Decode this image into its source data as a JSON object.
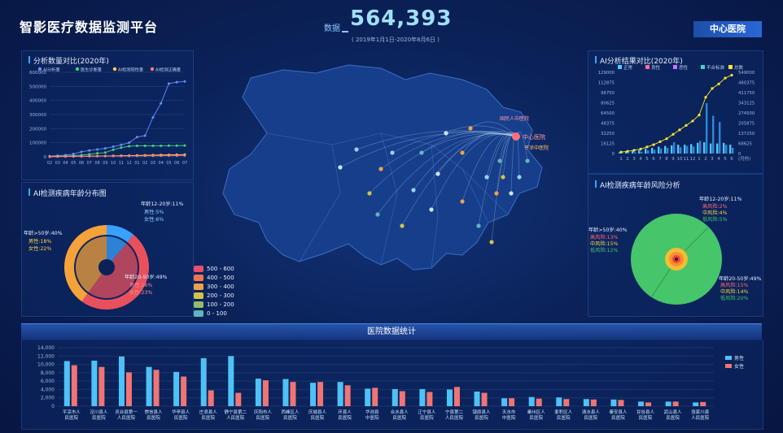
{
  "header": {
    "title": "智影医疗数据监测平台",
    "total_label": "数据",
    "total_value": "564,393",
    "date_range": "( 2019年1月1日-2020年8月6日 )",
    "hospital_button": "中心医院"
  },
  "map": {
    "center_label": "中心医院",
    "labels": [
      "国民人中医院",
      "平凉中医院"
    ],
    "heat_legend": [
      {
        "label": "500 - 600",
        "color": "#e8506a"
      },
      {
        "label": "400 - 500",
        "color": "#ee7650"
      },
      {
        "label": "300 - 400",
        "color": "#f0a04a"
      },
      {
        "label": "200 - 300",
        "color": "#d6c04c"
      },
      {
        "label": "100 - 200",
        "color": "#8fbf6a"
      },
      {
        "label": "0 - 100",
        "color": "#5fb6b8"
      }
    ]
  },
  "left_top": {
    "title": "分析数量对比(2020年)",
    "legend": [
      "AI分析量",
      "医生诊断量",
      "AI检测阳性量",
      "AI检测正确量"
    ]
  },
  "left_bottom": {
    "title": "AI检测疾病年龄分布图",
    "labels": [
      {
        "text": "年龄12-20岁:11%"
      },
      {
        "text": "男性:5%"
      },
      {
        "text": "女性:6%"
      },
      {
        "text": "年龄>50岁:40%"
      },
      {
        "text": "男性:18%"
      },
      {
        "text": "女性:22%"
      },
      {
        "text": "年龄20-50岁:49%"
      },
      {
        "text": "男性:26%"
      },
      {
        "text": "女性:23%"
      }
    ]
  },
  "right_top": {
    "title": "AI分析结果对比(2020年)",
    "legend": [
      "正常",
      "良性",
      "恶性",
      "不合标准",
      "总数"
    ]
  },
  "right_bottom": {
    "title": "AI检测疾病年龄风险分析",
    "labels": [
      {
        "text": "年龄12-20岁:11%"
      },
      {
        "text": "高风险:2%"
      },
      {
        "text": "中风险:4%"
      },
      {
        "text": "低风险:5%"
      },
      {
        "text": "年龄>50岁:40%"
      },
      {
        "text": "高风险:13%"
      },
      {
        "text": "中风险:15%"
      },
      {
        "text": "低风险:12%"
      },
      {
        "text": "年龄20-50岁:49%"
      },
      {
        "text": "高风险:15%"
      },
      {
        "text": "中风险:14%"
      },
      {
        "text": "低风险:20%"
      }
    ]
  },
  "bottom": {
    "title": "医院数据统计",
    "legend": [
      "男性",
      "女性"
    ]
  },
  "chart_data": [
    {
      "type": "line",
      "title": "分析数量对比(2020年)",
      "x": [
        "02",
        "03",
        "04",
        "05",
        "06",
        "07",
        "08",
        "09",
        "10",
        "11",
        "12",
        "01",
        "02",
        "03",
        "04",
        "05",
        "06",
        "07"
      ],
      "ylim": [
        0,
        600000
      ],
      "yticks": [
        "600000",
        "500000",
        "400000",
        "300000",
        "200000",
        "100000",
        "0"
      ],
      "xticks": [
        "02",
        "03",
        "04",
        "05",
        "06",
        "07",
        "08",
        "09",
        "10",
        "11",
        "12",
        "01",
        "02",
        "03",
        "04",
        "05",
        "06",
        "07"
      ],
      "series": [
        {
          "name": "AI分析量",
          "color": "#6a8cff",
          "values": [
            5000,
            8000,
            12000,
            20000,
            35000,
            45000,
            52000,
            60000,
            72000,
            85000,
            100000,
            140000,
            150000,
            280000,
            380000,
            520000,
            530000,
            535000
          ]
        },
        {
          "name": "医生诊断量",
          "color": "#3fd47a",
          "values": [
            2000,
            3000,
            5000,
            8000,
            12000,
            18000,
            25000,
            30000,
            50000,
            65000,
            75000,
            78000,
            78000,
            78000,
            78000,
            79000,
            79000,
            80000
          ]
        },
        {
          "name": "AI检测阳性量",
          "color": "#ffd24a",
          "values": [
            1000,
            2000,
            2500,
            3000,
            4000,
            5000,
            5500,
            6000,
            7000,
            8000,
            9000,
            10000,
            11000,
            12000,
            13000,
            14000,
            15000,
            16000
          ]
        },
        {
          "name": "AI检测正确量",
          "color": "#ff7a7a",
          "values": [
            800,
            1500,
            2000,
            2500,
            3000,
            3500,
            4000,
            4500,
            5000,
            5500,
            6000,
            6500,
            7000,
            7500,
            8000,
            8500,
            9000,
            9500
          ]
        }
      ]
    },
    {
      "type": "pie",
      "title": "AI检测疾病年龄分布图",
      "categories": [
        "年龄12-20岁",
        "年龄20-50岁",
        "年龄>50岁"
      ],
      "values": [
        11,
        49,
        40
      ],
      "colors": [
        "#3aa0ff",
        "#e8505e",
        "#f6a23a"
      ]
    },
    {
      "type": "bar",
      "title": "AI分析结果对比(2020年)",
      "categories": [
        "1",
        "2",
        "3",
        "4",
        "5",
        "6",
        "7",
        "8",
        "9",
        "10",
        "11",
        "12",
        "1",
        "2",
        "3",
        "4",
        "5",
        "6"
      ],
      "xticks": [
        "1",
        "2",
        "3",
        "4",
        "5",
        "6",
        "7",
        "8",
        "9",
        "10",
        "11",
        "12",
        "1",
        "2",
        "3",
        "4",
        "5",
        "6"
      ],
      "x_suffix": "(月份)",
      "yticks_left": [
        "129000",
        "112875",
        "96750",
        "80625",
        "64500",
        "48375",
        "32250",
        "16125",
        "0"
      ],
      "yticks_right": [
        "549000",
        "480375",
        "411750",
        "343125",
        "274500",
        "205875",
        "137250",
        "68625",
        "0"
      ],
      "ylim": [
        0,
        129000
      ],
      "series": [
        {
          "name": "正常",
          "color": "#4ec9ff",
          "values": [
            2000,
            3000,
            4000,
            5000,
            8000,
            9000,
            11000,
            12000,
            13000,
            14000,
            14000,
            15000,
            17000,
            18000,
            16000,
            16000,
            17000,
            14000
          ]
        },
        {
          "name": "不合标准",
          "color": "#2d88d6",
          "values": [
            1000,
            1500,
            2000,
            3000,
            5000,
            6000,
            8000,
            9000,
            18000,
            10000,
            12000,
            11000,
            20000,
            80000,
            60000,
            50000,
            14000,
            9000
          ]
        },
        {
          "name": "总数",
          "color": "#ffe82a",
          "values": [
            10000,
            15000,
            22000,
            30000,
            45000,
            60000,
            80000,
            100000,
            130000,
            160000,
            190000,
            220000,
            260000,
            380000,
            440000,
            470000,
            510000,
            530000
          ]
        }
      ]
    },
    {
      "type": "pie",
      "title": "AI检测疾病年龄风险分析",
      "categories": [
        "年龄12-20岁",
        "年龄20-50岁",
        "年龄>50岁"
      ],
      "values": [
        11,
        49,
        40
      ],
      "colors": [
        "#f0c030",
        "#e24a3a",
        "#46c56a"
      ]
    },
    {
      "type": "bar",
      "title": "医院数据统计",
      "yticks": [
        "14,000",
        "12,000",
        "10,000",
        "8,000",
        "6,000",
        "4,000",
        "2,000",
        "0"
      ],
      "ylim": [
        0,
        14000
      ],
      "categories": [
        "平凉市人民医院",
        "泾川县人民医院",
        "灵台县第一人民医院",
        "崇信县人民医院",
        "华亭县人民医院",
        "庄浪县人民医院",
        "静宁县第二人民医院",
        "庆阳市人民医院",
        "西峰区人民医院",
        "庆城县人民医院",
        "环县人民医院",
        "华池县中医院",
        "合水县人民医院",
        "正宁县人民医院",
        "宁县第二人民医院",
        "镇原县人民医院",
        "天水市中医院",
        "秦州区人民医院",
        "麦积区人民医院",
        "清水县人民医院",
        "秦安县人民医院",
        "甘谷县人民医院",
        "武山县人民医院",
        "张家川县人民医院"
      ],
      "series": [
        {
          "name": "男性",
          "color": "#4ec2f7",
          "values": [
            10800,
            10900,
            11900,
            9400,
            8200,
            11500,
            12000,
            6600,
            6500,
            5600,
            5800,
            4200,
            4100,
            4100,
            4000,
            3500,
            1900,
            2200,
            2100,
            1700,
            1600,
            1100,
            1100,
            900
          ]
        },
        {
          "name": "女性",
          "color": "#f07474",
          "values": [
            9800,
            9400,
            8100,
            8700,
            7100,
            3800,
            3200,
            6200,
            5800,
            5800,
            5000,
            4400,
            3600,
            3400,
            4600,
            3200,
            1900,
            1800,
            1700,
            1600,
            1500,
            900,
            1100,
            1000
          ]
        }
      ]
    }
  ]
}
